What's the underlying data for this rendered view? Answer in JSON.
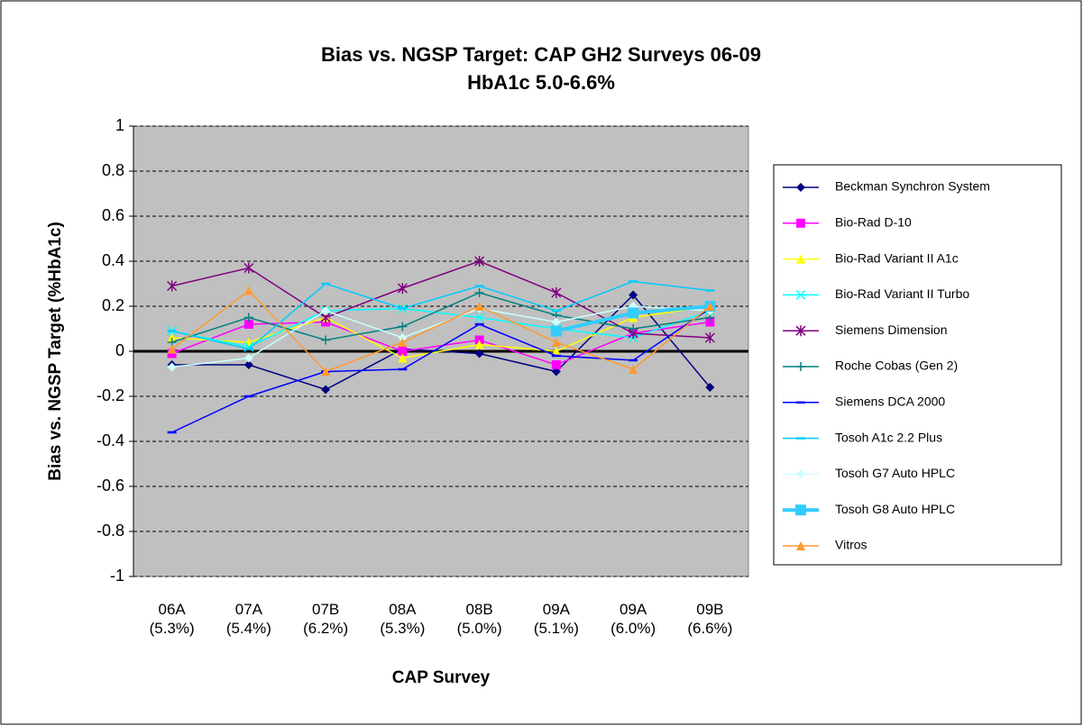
{
  "chart_data": {
    "type": "line",
    "title": "Bias vs. NGSP Target: CAP GH2 Surveys 06-09",
    "subtitle": "HbA1c 5.0-6.6%",
    "x_label": "CAP Survey",
    "y_label": "Bias vs. NGSP Target (%HbA1c)",
    "categories": [
      "06A (5.3%)",
      "07A (5.4%)",
      "07B (6.2%)",
      "08A (5.3%)",
      "08B (5.0%)",
      "09A (5.1%)",
      "09A (6.0%)",
      "09B (6.6%)"
    ],
    "ylim": [
      -1,
      1
    ],
    "yticks": [
      -1,
      -0.8,
      -0.6,
      -0.4,
      -0.2,
      0,
      0.2,
      0.4,
      0.6,
      0.8,
      1
    ],
    "grid": true,
    "plot_background": "#c0c0c0",
    "legend": "right",
    "series": [
      {
        "name": "Beckman Synchron System",
        "color": "#000080",
        "marker": "diamond",
        "values": [
          -0.06,
          -0.06,
          -0.17,
          0.01,
          -0.01,
          -0.09,
          0.25,
          -0.16
        ]
      },
      {
        "name": "Bio-Rad D-10",
        "color": "#ff00ff",
        "marker": "square",
        "values": [
          -0.01,
          0.12,
          0.13,
          0.0,
          0.05,
          -0.06,
          0.08,
          0.13
        ]
      },
      {
        "name": "Bio-Rad Variant II A1c",
        "color": "#ffff00",
        "marker": "triangle",
        "values": [
          0.06,
          0.04,
          0.15,
          -0.03,
          0.03,
          0.0,
          0.15,
          0.2
        ]
      },
      {
        "name": "Bio-Rad Variant II Turbo",
        "color": "#00ffff",
        "marker": "x",
        "values": [
          0.09,
          0.02,
          0.18,
          0.19,
          0.15,
          0.1,
          0.06,
          0.18
        ]
      },
      {
        "name": "Siemens Dimension",
        "color": "#800080",
        "marker": "star",
        "values": [
          0.29,
          0.37,
          0.15,
          0.28,
          0.4,
          0.26,
          0.08,
          0.06
        ]
      },
      {
        "name": "Roche Cobas (Gen 2)",
        "color": "#008080",
        "marker": "plus",
        "values": [
          0.04,
          0.15,
          0.05,
          0.11,
          0.26,
          0.16,
          0.1,
          0.15
        ]
      },
      {
        "name": "Siemens DCA 2000",
        "color": "#0000ff",
        "marker": "dash",
        "values": [
          -0.36,
          -0.2,
          -0.09,
          -0.08,
          0.12,
          -0.02,
          -0.04,
          0.19
        ]
      },
      {
        "name": "Tosoh A1c 2.2 Plus",
        "color": "#00ccff",
        "marker": "dash",
        "values": [
          0.09,
          0.01,
          0.3,
          0.19,
          0.29,
          0.18,
          0.31,
          0.27
        ]
      },
      {
        "name": "Tosoh G7 Auto HPLC",
        "color": "#ccffff",
        "marker": "diamond",
        "values": [
          -0.07,
          -0.03,
          0.18,
          0.06,
          0.19,
          0.13,
          0.2,
          0.18
        ]
      },
      {
        "name": "Tosoh G8 Auto HPLC",
        "color": "#33ccff",
        "marker": "square",
        "line_width": 4,
        "values": [
          null,
          null,
          null,
          null,
          null,
          0.09,
          0.17,
          0.2
        ]
      },
      {
        "name": "Vitros",
        "color": "#ff9933",
        "marker": "triangle",
        "values": [
          0.01,
          0.27,
          -0.09,
          0.04,
          0.2,
          0.04,
          -0.08,
          0.2
        ]
      }
    ]
  }
}
